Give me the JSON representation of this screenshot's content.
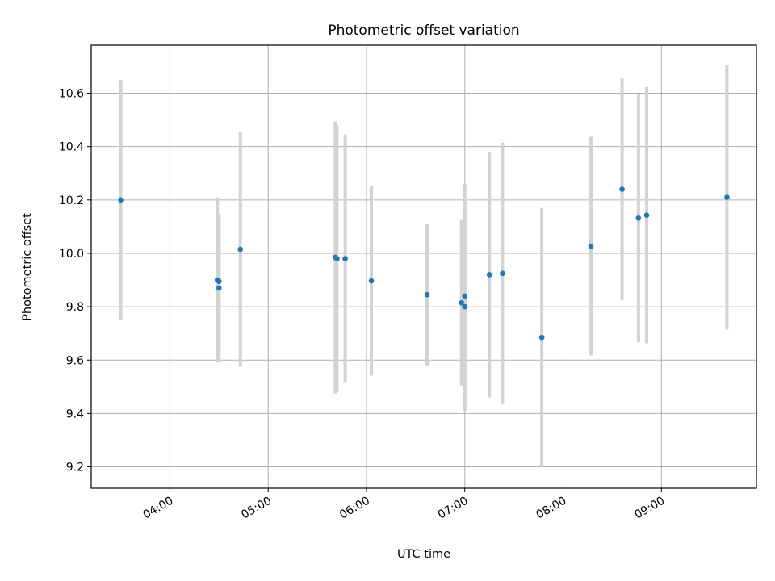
{
  "chart_data": {
    "type": "scatter",
    "title": "Photometric offset variation",
    "xlabel": "UTC time",
    "ylabel": "Photometric offset",
    "x_tick_labels": [
      "04:00",
      "05:00",
      "06:00",
      "07:00",
      "08:00",
      "09:00"
    ],
    "y_tick_labels": [
      "9.2",
      "9.4",
      "9.6",
      "9.8",
      "10.0",
      "10.2",
      "10.4",
      "10.6"
    ],
    "xlim": [
      "03:12",
      "09:58"
    ],
    "ylim": [
      9.12,
      10.78
    ],
    "grid": true,
    "legend": false,
    "marker_color": "#1f77b4",
    "errorbar_color": "#d3d3d3",
    "points": [
      {
        "x": "03:30",
        "y": 10.2,
        "yerr": 0.45
      },
      {
        "x": "04:29",
        "y": 9.9,
        "yerr": 0.31
      },
      {
        "x": "04:30",
        "y": 9.895,
        "yerr": 0.25
      },
      {
        "x": "04:30",
        "y": 9.87,
        "yerr": 0.28
      },
      {
        "x": "04:43",
        "y": 10.015,
        "yerr": 0.44
      },
      {
        "x": "05:41",
        "y": 9.985,
        "yerr": 0.51
      },
      {
        "x": "05:42",
        "y": 9.98,
        "yerr": 0.5
      },
      {
        "x": "05:47",
        "y": 9.98,
        "yerr": 0.465
      },
      {
        "x": "06:03",
        "y": 9.897,
        "yerr": 0.355
      },
      {
        "x": "06:37",
        "y": 9.845,
        "yerr": 0.265
      },
      {
        "x": "06:58",
        "y": 9.815,
        "yerr": 0.31
      },
      {
        "x": "07:00",
        "y": 9.8,
        "yerr": 0.39
      },
      {
        "x": "07:00",
        "y": 9.84,
        "yerr": 0.42
      },
      {
        "x": "07:15",
        "y": 9.92,
        "yerr": 0.46
      },
      {
        "x": "07:23",
        "y": 9.925,
        "yerr": 0.49
      },
      {
        "x": "07:47",
        "y": 9.685,
        "yerr": 0.485
      },
      {
        "x": "08:17",
        "y": 10.027,
        "yerr": 0.41
      },
      {
        "x": "08:36",
        "y": 10.24,
        "yerr": 0.415
      },
      {
        "x": "08:46",
        "y": 10.132,
        "yerr": 0.465
      },
      {
        "x": "08:51",
        "y": 10.143,
        "yerr": 0.48
      },
      {
        "x": "09:40",
        "y": 10.21,
        "yerr": 0.495
      }
    ]
  }
}
